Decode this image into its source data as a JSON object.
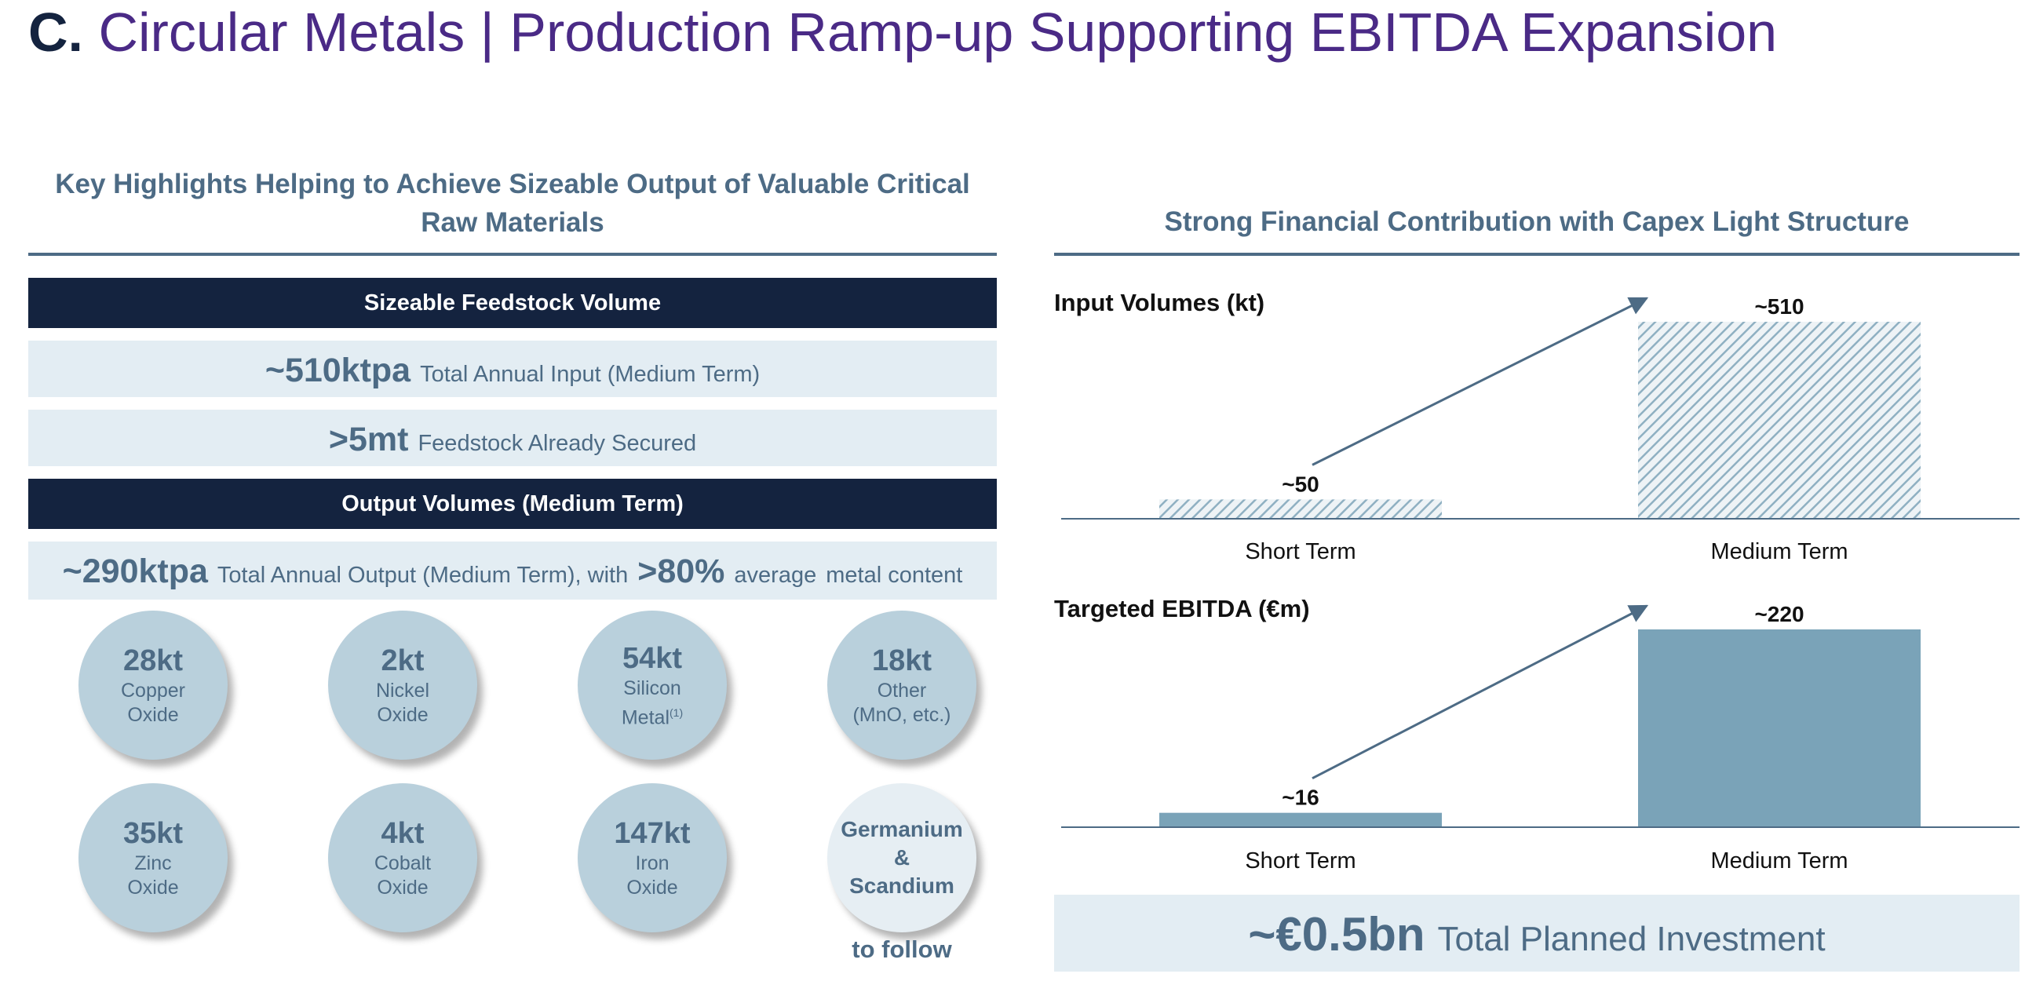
{
  "header": {
    "section_letter": "C.",
    "title": "Circular Metals | Production Ramp-up Supporting EBITDA Expansion"
  },
  "left": {
    "heading_line1": "Key Highlights Helping to Achieve Sizeable Output of Valuable Critical",
    "heading_line2": "Raw Materials",
    "band1": "Sizeable Feedstock Volume",
    "row1": {
      "big": "~510ktpa",
      "text": "Total Annual Input (Medium Term)"
    },
    "row2": {
      "big": ">5mt",
      "text": "Feedstock Already Secured"
    },
    "band2": "Output Volumes (Medium Term)",
    "row3": {
      "big": "~290ktpa",
      "text1": "Total Annual Output (Medium Term), with",
      "big2": ">80%",
      "text2": "average",
      "text3": "metal content"
    },
    "metals": [
      {
        "qty": "28kt",
        "line1": "Copper",
        "line2": "Oxide"
      },
      {
        "qty": "2kt",
        "line1": "Nickel",
        "line2": "Oxide"
      },
      {
        "qty": "54kt",
        "line1": "Silicon",
        "line2": "Metal",
        "note": "(1)"
      },
      {
        "qty": "18kt",
        "line1": "Other",
        "line2": "(MnO, etc.)"
      },
      {
        "qty": "35kt",
        "line1": "Zinc",
        "line2": "Oxide"
      },
      {
        "qty": "4kt",
        "line1": "Cobalt",
        "line2": "Oxide"
      },
      {
        "qty": "147kt",
        "line1": "Iron",
        "line2": "Oxide"
      }
    ],
    "future": {
      "line1": "Germanium",
      "line2": "&",
      "line3": "Scandium",
      "caption": "to follow"
    }
  },
  "right": {
    "heading": "Strong Financial Contribution with Capex Light Structure",
    "investment": {
      "big": "~€0.5bn",
      "text": "Total Planned Investment"
    }
  },
  "chart_data": [
    {
      "type": "bar",
      "title": "Input Volumes (kt)",
      "categories": [
        "Short Term",
        "Medium Term"
      ],
      "values": [
        50,
        510
      ],
      "data_labels": [
        "~50",
        "~510"
      ],
      "fill": "hatched",
      "color": "#7aa3b8",
      "arrow": true
    },
    {
      "type": "bar",
      "title": "Targeted EBITDA (€m)",
      "categories": [
        "Short Term",
        "Medium Term"
      ],
      "values": [
        16,
        220
      ],
      "data_labels": [
        "~16",
        "~220"
      ],
      "fill": "solid",
      "color": "#7aa3b8",
      "arrow": true
    }
  ]
}
